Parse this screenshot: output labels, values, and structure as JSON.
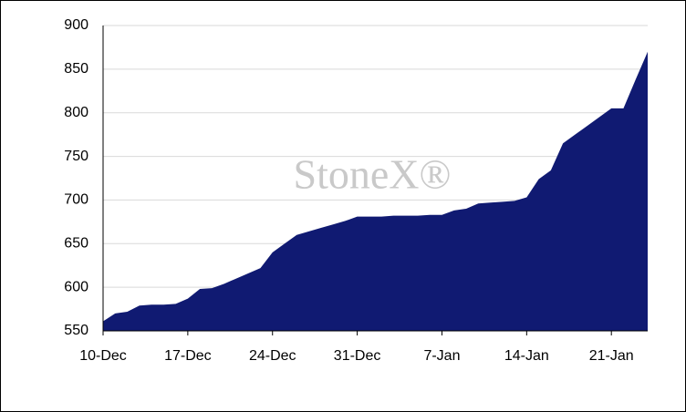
{
  "chart_data": {
    "type": "area",
    "watermark": "StoneX®",
    "categories": [
      "10-Dec",
      null,
      null,
      null,
      null,
      null,
      null,
      "17-Dec",
      null,
      null,
      null,
      null,
      null,
      null,
      "24-Dec",
      null,
      null,
      null,
      null,
      null,
      null,
      "31-Dec",
      null,
      null,
      null,
      null,
      null,
      null,
      "7-Jan",
      null,
      null,
      null,
      null,
      null,
      null,
      "14-Jan",
      null,
      null,
      null,
      null,
      null,
      null,
      "21-Jan",
      null,
      null,
      null
    ],
    "values": [
      561,
      570,
      572,
      579,
      580,
      580,
      581,
      587,
      598,
      599,
      604,
      610,
      616,
      622,
      640,
      650,
      660,
      664,
      668,
      672,
      676,
      681,
      681,
      681,
      682,
      682,
      682,
      683,
      683,
      688,
      690,
      696,
      697,
      698,
      699,
      703,
      724,
      734,
      765,
      775,
      785,
      795,
      805,
      805,
      838,
      870
    ],
    "color": "#101a72",
    "ylim": [
      550,
      900
    ],
    "yticks": [
      550,
      600,
      650,
      700,
      750,
      800,
      850,
      900
    ],
    "grid": true
  }
}
